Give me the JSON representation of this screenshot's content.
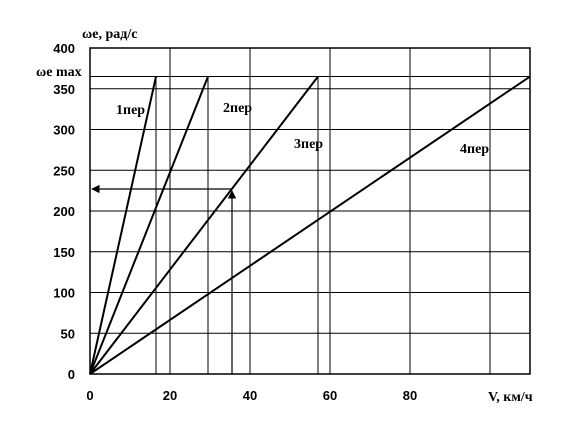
{
  "chart_data": {
    "type": "line",
    "title": "",
    "xlabel": "V, км/ч",
    "ylabel": "ωe, рад/с",
    "ymax_label": "ωe max",
    "xlim": [
      0,
      110
    ],
    "ylim": [
      0,
      400
    ],
    "x_ticks": [
      0,
      20,
      40,
      60,
      80
    ],
    "y_ticks": [
      0,
      50,
      100,
      150,
      200,
      250,
      300,
      350,
      400
    ],
    "grid": true,
    "omega_max": 365,
    "series": [
      {
        "name": "1пер",
        "x": [
          0,
          16.5
        ],
        "y": [
          0,
          365
        ]
      },
      {
        "name": "2пер",
        "x": [
          0,
          29.5
        ],
        "y": [
          0,
          365
        ]
      },
      {
        "name": "3пер",
        "x": [
          0,
          57
        ],
        "y": [
          0,
          365
        ]
      },
      {
        "name": "4пер",
        "x": [
          0,
          110
        ],
        "y": [
          0,
          365
        ]
      }
    ],
    "annotation": {
      "v": 35.5,
      "omega": 227
    }
  }
}
